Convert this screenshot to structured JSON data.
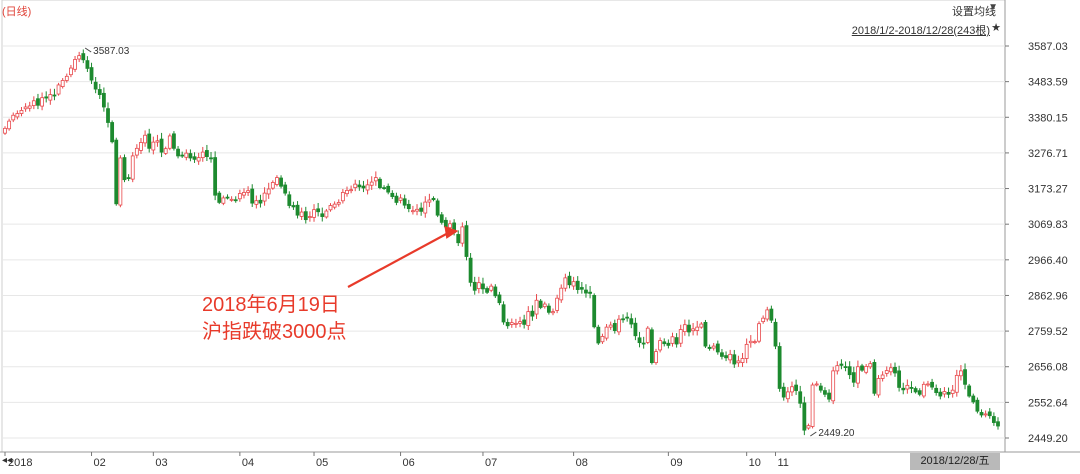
{
  "header": {
    "period": "(日线)",
    "ma_setting": "设置均线",
    "range": "2018/1/2-2018/12/28(243根)"
  },
  "annotation": {
    "line1": "2018年6月19日",
    "line2": "沪指跌破3000点"
  },
  "cursor_date": "2018/12/28/五",
  "colors": {
    "up": "#e8474a",
    "down": "#1d8a2f",
    "annotation": "#e83a2a",
    "grid": "#e7e7e7"
  },
  "chart_data": {
    "type": "candlestick",
    "title": "",
    "xlabel": "",
    "ylabel": "",
    "y_ticks": [
      "3587.03",
      "3483.59",
      "3380.15",
      "3276.71",
      "3173.27",
      "3069.83",
      "2966.40",
      "2862.96",
      "2759.52",
      "2656.08",
      "2552.64",
      "2449.20"
    ],
    "x_ticks": [
      "2018",
      "02",
      "03",
      "04",
      "05",
      "06",
      "07",
      "08",
      "09",
      "10",
      "11"
    ],
    "ylim": [
      2449.2,
      3587.03
    ],
    "grid": true,
    "high_label": "3587.03",
    "low_label": "2449.20",
    "closes": [
      3348,
      3369,
      3386,
      3391,
      3400,
      3410,
      3413,
      3428,
      3415,
      3437,
      3436,
      3446,
      3444,
      3474,
      3487,
      3499,
      3523,
      3548,
      3559,
      3547,
      3522,
      3488,
      3462,
      3446,
      3410,
      3365,
      3309,
      3129,
      3262,
      3199,
      3203,
      3268,
      3290,
      3307,
      3328,
      3290,
      3308,
      3312,
      3279,
      3289,
      3326,
      3290,
      3268,
      3270,
      3276,
      3262,
      3258,
      3263,
      3279,
      3266,
      3262,
      3154,
      3133,
      3146,
      3148,
      3142,
      3140,
      3159,
      3162,
      3167,
      3131,
      3138,
      3131,
      3160,
      3172,
      3191,
      3205,
      3180,
      3160,
      3124,
      3120,
      3096,
      3105,
      3083,
      3092,
      3112,
      3106,
      3092,
      3108,
      3124,
      3128,
      3133,
      3162,
      3168,
      3170,
      3186,
      3178,
      3175,
      3184,
      3192,
      3205,
      3176,
      3175,
      3163,
      3150,
      3133,
      3146,
      3125,
      3115,
      3109,
      3113,
      3107,
      3134,
      3140,
      3141,
      3096,
      3075,
      3062,
      3071,
      3046,
      3016,
      3062,
      2976,
      2901,
      2878,
      2900,
      2882,
      2872,
      2890,
      2862,
      2842,
      2786,
      2775,
      2784,
      2782,
      2787,
      2779,
      2816,
      2803,
      2849,
      2828,
      2838,
      2814,
      2816,
      2855,
      2884,
      2914,
      2894,
      2903,
      2880,
      2881,
      2870,
      2869,
      2772,
      2725,
      2744,
      2771,
      2777,
      2761,
      2794,
      2794,
      2798,
      2780,
      2746,
      2726,
      2723,
      2768,
      2668,
      2700,
      2732,
      2723,
      2718,
      2743,
      2722,
      2764,
      2778,
      2757,
      2766,
      2771,
      2780,
      2716,
      2709,
      2716,
      2699,
      2686,
      2682,
      2692,
      2664,
      2673,
      2680,
      2721,
      2730,
      2729,
      2781,
      2797,
      2821,
      2791,
      2716,
      2593,
      2568,
      2583,
      2598,
      2587,
      2550,
      2472,
      2485,
      2603,
      2606,
      2588,
      2576,
      2562,
      2644,
      2659,
      2660,
      2655,
      2633,
      2611,
      2656,
      2646,
      2657,
      2665,
      2579,
      2622,
      2632,
      2645,
      2653,
      2638,
      2596,
      2589,
      2602,
      2594,
      2583,
      2576,
      2605,
      2606,
      2597,
      2581,
      2571,
      2584,
      2576,
      2588,
      2631,
      2644,
      2605,
      2571,
      2554,
      2527,
      2516,
      2519,
      2514,
      2494,
      2484
    ]
  }
}
